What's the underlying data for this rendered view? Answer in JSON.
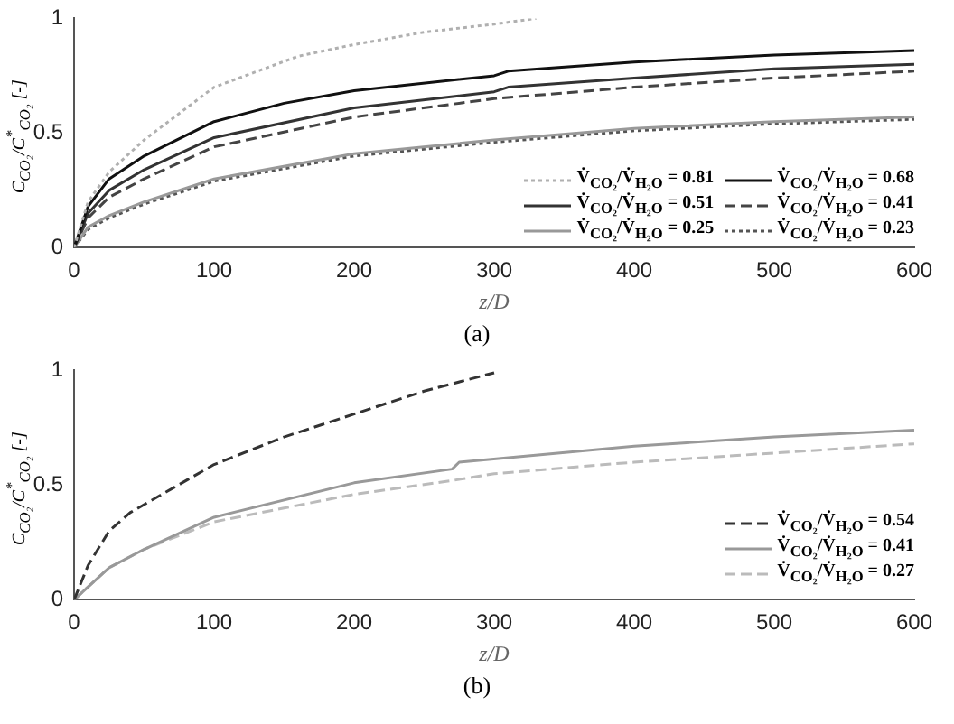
{
  "chart_data": [
    {
      "type": "line",
      "title": "(a)",
      "xlabel": "z/D",
      "ylabel": "C$_{CO₂}$/C$^{*}$$_{CO₂}$ [-]",
      "xlim": [
        0,
        600
      ],
      "xticks": [
        0,
        100,
        200,
        300,
        400,
        500,
        600
      ],
      "ylim": [
        0,
        1
      ],
      "yticks": [
        0,
        0.5,
        1
      ],
      "grid": false,
      "legend": "bottom right",
      "marker": "none",
      "series": [
        {
          "name": "V̇$_{CO₂}$/V̇$_{H₂O}$ = 0.81",
          "color": "#b0b0b0",
          "line_style": "dotted",
          "x": [
            0,
            10,
            25,
            50,
            100,
            160,
            200,
            250,
            300,
            330
          ],
          "values": [
            0,
            0.2,
            0.33,
            0.47,
            0.7,
            0.835,
            0.886,
            0.94,
            0.975,
            1.0
          ]
        },
        {
          "name": "V̇$_{CO₂}$/V̇$_{H₂O}$ = 0.68",
          "color": "#111111",
          "line_style": "solid",
          "x": [
            0,
            10,
            25,
            50,
            100,
            150,
            200,
            300,
            310,
            400,
            500,
            600
          ],
          "values": [
            0,
            0.18,
            0.3,
            0.4,
            0.55,
            0.63,
            0.685,
            0.75,
            0.77,
            0.81,
            0.84,
            0.86
          ]
        },
        {
          "name": "V̇$_{CO₂}$/V̇$_{H₂O}$ = 0.51",
          "color": "#333333",
          "line_style": "solid",
          "x": [
            0,
            10,
            25,
            50,
            100,
            200,
            300,
            310,
            400,
            500,
            600
          ],
          "values": [
            0,
            0.15,
            0.25,
            0.34,
            0.48,
            0.61,
            0.68,
            0.7,
            0.74,
            0.78,
            0.8
          ]
        },
        {
          "name": "V̇$_{CO₂}$/V̇$_{H₂O}$ = 0.41",
          "color": "#444444",
          "line_style": "dashed",
          "x": [
            0,
            10,
            25,
            50,
            100,
            200,
            300,
            400,
            500,
            600
          ],
          "values": [
            0,
            0.13,
            0.22,
            0.3,
            0.44,
            0.57,
            0.65,
            0.7,
            0.74,
            0.77
          ]
        },
        {
          "name": "V̇$_{CO₂}$/V̇$_{H₂O}$ = 0.25",
          "color": "#999999",
          "line_style": "solid",
          "x": [
            0,
            10,
            25,
            50,
            100,
            200,
            300,
            400,
            500,
            600
          ],
          "values": [
            0,
            0.09,
            0.14,
            0.2,
            0.3,
            0.41,
            0.47,
            0.52,
            0.55,
            0.57
          ]
        },
        {
          "name": "V̇$_{CO₂}$/V̇$_{H₂O}$ = 0.23",
          "color": "#555555",
          "line_style": "dotted",
          "x": [
            0,
            10,
            25,
            50,
            100,
            200,
            300,
            400,
            500,
            600
          ],
          "values": [
            0,
            0.08,
            0.13,
            0.19,
            0.29,
            0.4,
            0.46,
            0.51,
            0.54,
            0.56
          ]
        }
      ]
    },
    {
      "type": "line",
      "title": "(b)",
      "xlabel": "z/D",
      "ylabel": "C$_{CO₂}$/C$^{*}$$_{CO₂}$ [-]",
      "xlim": [
        0,
        600
      ],
      "xticks": [
        0,
        100,
        200,
        300,
        400,
        500,
        600
      ],
      "ylim": [
        0,
        1
      ],
      "yticks": [
        0,
        0.5,
        1
      ],
      "grid": false,
      "legend": "right",
      "marker": "none",
      "series": [
        {
          "name": "V̇$_{CO₂}$/V̇$_{H₂O}$ = 0.54",
          "color": "#333333",
          "line_style": "dashed",
          "x": [
            0,
            10,
            25,
            40,
            100,
            150,
            200,
            250,
            300
          ],
          "values": [
            0,
            0.15,
            0.3,
            0.38,
            0.59,
            0.71,
            0.81,
            0.91,
            0.99
          ]
        },
        {
          "name": "V̇$_{CO₂}$/V̇$_{H₂O}$ = 0.41",
          "color": "#999999",
          "line_style": "solid",
          "x": [
            0,
            25,
            50,
            100,
            200,
            270,
            275,
            400,
            500,
            600
          ],
          "values": [
            0,
            0.14,
            0.22,
            0.36,
            0.51,
            0.57,
            0.6,
            0.67,
            0.71,
            0.74
          ]
        },
        {
          "name": "V̇$_{CO₂}$/V̇$_{H₂O}$ = 0.27",
          "color": "#bbbbbb",
          "line_style": "dashed",
          "x": [
            0,
            25,
            50,
            100,
            200,
            270,
            300,
            400,
            500,
            600
          ],
          "values": [
            0,
            0.14,
            0.22,
            0.34,
            0.46,
            0.52,
            0.55,
            0.6,
            0.64,
            0.68
          ]
        }
      ]
    }
  ]
}
